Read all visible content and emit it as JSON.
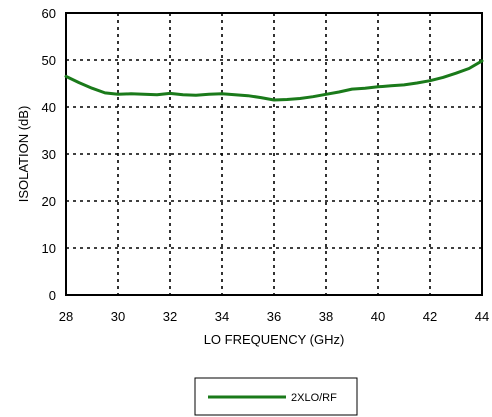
{
  "chart_data": {
    "type": "line",
    "xlabel": "LO FREQUENCY (GHz)",
    "ylabel": "ISOLATION  (dB)",
    "xlim": [
      28,
      44
    ],
    "ylim": [
      0,
      60
    ],
    "xticks": [
      28,
      30,
      32,
      34,
      36,
      38,
      40,
      42,
      44
    ],
    "yticks": [
      0,
      10,
      20,
      30,
      40,
      50,
      60
    ],
    "grid": "dotted",
    "legend_position": "bottom-center",
    "series": [
      {
        "name": "2XLO/RF",
        "color": "#1a7a1a",
        "x": [
          28,
          28.5,
          29,
          29.5,
          30,
          30.5,
          31,
          31.5,
          32,
          32.5,
          33,
          33.5,
          34,
          34.5,
          35,
          35.5,
          36,
          36.5,
          37,
          37.5,
          38,
          38.5,
          39,
          39.5,
          40,
          40.5,
          41,
          41.5,
          42,
          42.5,
          43,
          43.5,
          44
        ],
        "y": [
          46.5,
          45.2,
          44.0,
          43.0,
          42.7,
          42.8,
          42.7,
          42.6,
          42.9,
          42.6,
          42.5,
          42.7,
          42.8,
          42.6,
          42.4,
          42.0,
          41.5,
          41.6,
          41.8,
          42.2,
          42.7,
          43.2,
          43.8,
          44.0,
          44.3,
          44.5,
          44.7,
          45.1,
          45.6,
          46.3,
          47.2,
          48.2,
          49.8
        ]
      }
    ]
  }
}
